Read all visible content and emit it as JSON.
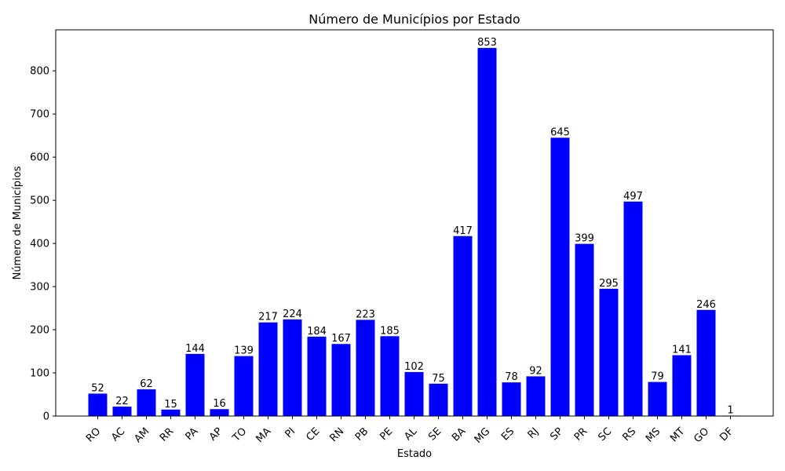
{
  "chart_data": {
    "type": "bar",
    "title": "Número de Municípios por Estado",
    "xlabel": "Estado",
    "ylabel": "Número de Municípios",
    "categories": [
      "RO",
      "AC",
      "AM",
      "RR",
      "PA",
      "AP",
      "TO",
      "MA",
      "PI",
      "CE",
      "RN",
      "PB",
      "PE",
      "AL",
      "SE",
      "BA",
      "MG",
      "ES",
      "RJ",
      "SP",
      "PR",
      "SC",
      "RS",
      "MS",
      "MT",
      "GO",
      "DF"
    ],
    "values": [
      52,
      22,
      62,
      15,
      144,
      16,
      139,
      217,
      224,
      184,
      167,
      223,
      185,
      102,
      75,
      417,
      853,
      78,
      92,
      645,
      399,
      295,
      497,
      79,
      141,
      246,
      1
    ],
    "ylim": [
      0,
      895
    ],
    "yticks": [
      0,
      100,
      200,
      300,
      400,
      500,
      600,
      700,
      800
    ],
    "bar_color": "#0000ff",
    "grid": false,
    "legend": "none"
  }
}
